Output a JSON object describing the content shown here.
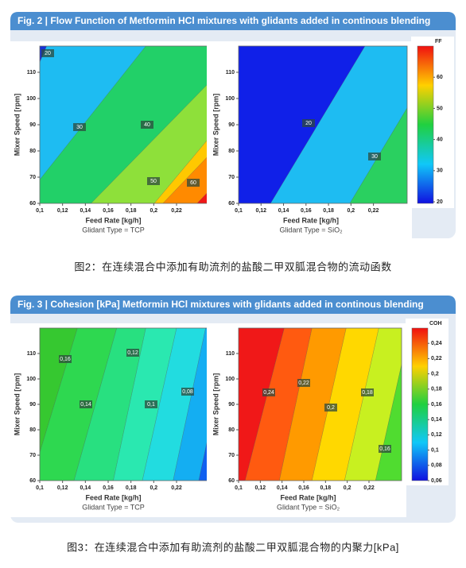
{
  "figures": [
    {
      "title": "Fig. 2 | Flow Function of Metformin HCl mixtures with glidants added in continous blending",
      "caption": "图2：在连续混合中添加有助流剂的盐酸二甲双胍混合物的流动函数",
      "colorbar": {
        "label": "FF",
        "lim": [
          19.5,
          70
        ],
        "ticks": [
          20,
          30,
          40,
          50,
          60
        ]
      },
      "plots": [
        {
          "ylabel": "Mixer Speed [rpm]",
          "xlabel": "Feed Rate [kg/h]",
          "subtitle": "Glidant Type = TCP",
          "xlim": [
            0.1,
            0.25
          ],
          "ylim": [
            60,
            120
          ],
          "xticks": [
            {
              "value": 0.1,
              "label": "0,1"
            },
            {
              "value": 0.12,
              "label": "0,12"
            },
            {
              "value": 0.14,
              "label": "0,14"
            },
            {
              "value": 0.16,
              "label": "0,16"
            },
            {
              "value": 0.18,
              "label": "0,18"
            },
            {
              "value": 0.2,
              "label": "0,2"
            },
            {
              "value": 0.22,
              "label": "0,22"
            }
          ],
          "yticks": [
            60,
            70,
            80,
            90,
            100,
            110
          ],
          "contour_labels": [
            20,
            30,
            40,
            50,
            60
          ]
        },
        {
          "ylabel": "Mixer Speed [rpm]",
          "xlabel": "Feed Rate [kg/h]",
          "subtitle": "Glidant Type = SiO₂",
          "xlim": [
            0.1,
            0.25
          ],
          "ylim": [
            60,
            120
          ],
          "xticks": [
            {
              "value": 0.1,
              "label": "0,1"
            },
            {
              "value": 0.12,
              "label": "0,12"
            },
            {
              "value": 0.14,
              "label": "0,14"
            },
            {
              "value": 0.16,
              "label": "0,16"
            },
            {
              "value": 0.18,
              "label": "0,18"
            },
            {
              "value": 0.2,
              "label": "0,2"
            },
            {
              "value": 0.22,
              "label": "0,22"
            }
          ],
          "yticks": [
            60,
            70,
            80,
            90,
            100,
            110
          ],
          "contour_labels": [
            20,
            30
          ]
        }
      ]
    },
    {
      "title": "Fig. 3 | Cohesion [kPa] Metformin HCl mixtures with glidants added in continous blending",
      "caption": "图3：在连续混合中添加有助流剂的盐酸二甲双胍混合物的内聚力[kPa]",
      "colorbar": {
        "label": "COH",
        "lim": [
          0.06,
          0.26
        ],
        "ticks": [
          {
            "value": 0.06,
            "label": "0,06"
          },
          {
            "value": 0.08,
            "label": "0,08"
          },
          {
            "value": 0.1,
            "label": "0,1"
          },
          {
            "value": 0.12,
            "label": "0,12"
          },
          {
            "value": 0.14,
            "label": "0,14"
          },
          {
            "value": 0.16,
            "label": "0,16"
          },
          {
            "value": 0.18,
            "label": "0,18"
          },
          {
            "value": 0.2,
            "label": "0,2"
          },
          {
            "value": 0.22,
            "label": "0,22"
          },
          {
            "value": 0.24,
            "label": "0,24"
          }
        ]
      },
      "plots": [
        {
          "ylabel": "Mixer Speed [rpm]",
          "xlabel": "Feed Rate [kg/h]",
          "subtitle": "Glidant Type = TCP",
          "xlim": [
            0.1,
            0.25
          ],
          "ylim": [
            60,
            120
          ],
          "xticks": [
            {
              "value": 0.1,
              "label": "0,1"
            },
            {
              "value": 0.12,
              "label": "0,12"
            },
            {
              "value": 0.14,
              "label": "0,14"
            },
            {
              "value": 0.16,
              "label": "0,16"
            },
            {
              "value": 0.18,
              "label": "0,18"
            },
            {
              "value": 0.2,
              "label": "0,2"
            },
            {
              "value": 0.22,
              "label": "0,22"
            }
          ],
          "yticks": [
            60,
            70,
            80,
            90,
            100,
            110
          ],
          "contour_labels": [
            {
              "value": 0.16,
              "label": "0,16"
            },
            {
              "value": 0.14,
              "label": "0,14"
            },
            {
              "value": 0.12,
              "label": "0,12"
            },
            {
              "value": 0.1,
              "label": "0,1"
            },
            {
              "value": 0.08,
              "label": "0,08"
            }
          ]
        },
        {
          "ylabel": "Mixer Speed [rpm]",
          "xlabel": "Feed Rate [kg/h]",
          "subtitle": "Glidant Type = SiO₂",
          "xlim": [
            0.1,
            0.25
          ],
          "ylim": [
            60,
            120
          ],
          "xticks": [
            {
              "value": 0.1,
              "label": "0,1"
            },
            {
              "value": 0.12,
              "label": "0,12"
            },
            {
              "value": 0.14,
              "label": "0,14"
            },
            {
              "value": 0.16,
              "label": "0,16"
            },
            {
              "value": 0.18,
              "label": "0,18"
            },
            {
              "value": 0.2,
              "label": "0,2"
            },
            {
              "value": 0.22,
              "label": "0,22"
            }
          ],
          "yticks": [
            60,
            70,
            80,
            90,
            100,
            110
          ],
          "contour_labels": [
            {
              "value": 0.24,
              "label": "0,24"
            },
            {
              "value": 0.22,
              "label": "0,22"
            },
            {
              "value": 0.2,
              "label": "0,2"
            },
            {
              "value": 0.18,
              "label": "0,18"
            },
            {
              "value": 0.16,
              "label": "0,16"
            }
          ]
        }
      ]
    }
  ]
}
